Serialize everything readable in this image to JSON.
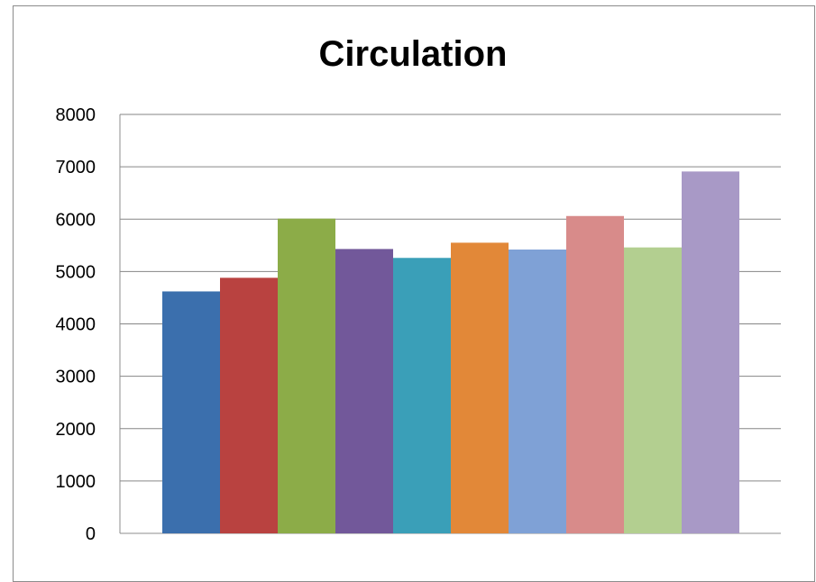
{
  "chart_data": {
    "type": "bar",
    "title": "Circulation",
    "xlabel": "",
    "ylabel": "",
    "ylim": [
      0,
      8000
    ],
    "yticks": [
      "0",
      "1000",
      "2000",
      "3000",
      "4000",
      "5000",
      "6000",
      "7000",
      "8000"
    ],
    "grid": true,
    "legend": "none",
    "values": [
      4620,
      4880,
      6010,
      5430,
      5260,
      5550,
      5420,
      6060,
      5460,
      6910
    ],
    "colors": [
      "#3b6fad",
      "#b94240",
      "#8cac48",
      "#72589a",
      "#3a9fb8",
      "#e28838",
      "#7fa1d6",
      "#d88b8a",
      "#b3cf90",
      "#a899c6"
    ]
  }
}
